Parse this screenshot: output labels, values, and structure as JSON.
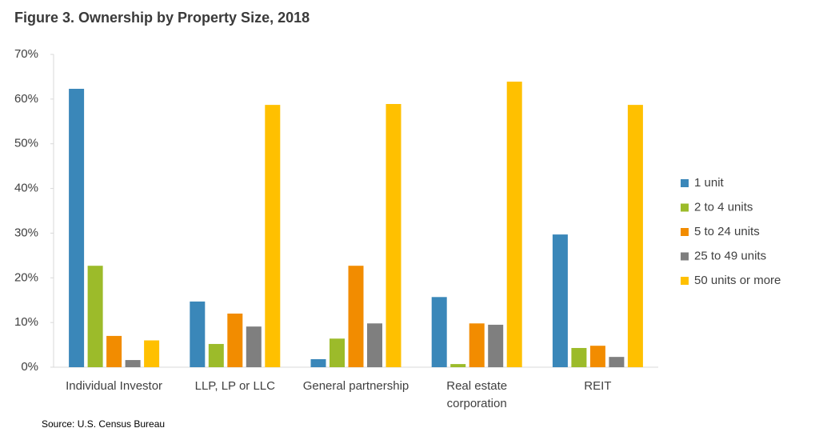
{
  "chart_data": {
    "type": "bar",
    "title": "Figure 3. Ownership by Property Size, 2018",
    "source": "Source: U.S. Census Bureau",
    "categories": [
      "Individual Investor",
      "LLP, LP or LLC",
      "General partnership",
      "Real estate corporation",
      "REIT"
    ],
    "series": [
      {
        "name": "1 unit",
        "color": "#3a87b9",
        "values": [
          62.3,
          14.7,
          1.8,
          15.7,
          29.7
        ]
      },
      {
        "name": "2 to 4 units",
        "color": "#9cbb2a",
        "values": [
          22.7,
          5.2,
          6.4,
          0.7,
          4.3
        ]
      },
      {
        "name": "5 to 24 units",
        "color": "#f28c00",
        "values": [
          7,
          12,
          22.7,
          9.8,
          4.8
        ]
      },
      {
        "name": "25 to 49 units",
        "color": "#7f7f7f",
        "values": [
          1.6,
          9.1,
          9.8,
          9.5,
          2.3
        ]
      },
      {
        "name": "50 units or more",
        "color": "#ffc000",
        "values": [
          6,
          58.7,
          58.9,
          63.9,
          58.7
        ]
      }
    ],
    "ylim": [
      0,
      70
    ],
    "yticks": [
      {
        "value": 0,
        "label": "0%"
      },
      {
        "value": 10,
        "label": "10%"
      },
      {
        "value": 20,
        "label": "20%"
      },
      {
        "value": 30,
        "label": "30%"
      },
      {
        "value": 40,
        "label": "40%"
      },
      {
        "value": 50,
        "label": "50%"
      },
      {
        "value": 60,
        "label": "60%"
      },
      {
        "value": 70,
        "label": "70%"
      }
    ],
    "grid": false,
    "legend": "right"
  }
}
